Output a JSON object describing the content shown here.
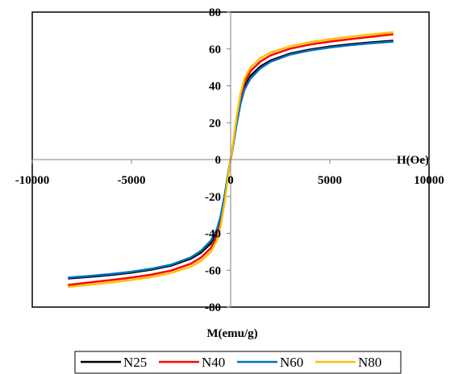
{
  "chart_data": {
    "type": "line",
    "xlabel": "H(Oe)",
    "ylabel": "M(emu/g)",
    "xlim": [
      -10000,
      10000
    ],
    "ylim": [
      -80,
      80
    ],
    "x_ticks": [
      -10000,
      -5000,
      0,
      5000,
      10000
    ],
    "y_ticks": [
      -80,
      -60,
      -40,
      -20,
      0,
      20,
      40,
      60,
      80
    ],
    "grid": false,
    "legend_position": "bottom",
    "x": [
      -8200,
      -7000,
      -6000,
      -5000,
      -4000,
      -3000,
      -2000,
      -1500,
      -1000,
      -700,
      -500,
      -300,
      -200,
      -100,
      0,
      100,
      200,
      300,
      500,
      700,
      1000,
      1500,
      2000,
      3000,
      4000,
      5000,
      6000,
      7000,
      8200
    ],
    "series": [
      {
        "name": "N25",
        "color": "#000000",
        "values": [
          -64.5,
          -63.5,
          -62.5,
          -61.3,
          -59.7,
          -57.5,
          -53.7,
          -50.5,
          -45.5,
          -39.5,
          -32,
          -20,
          -13,
          -6,
          0,
          6,
          13,
          20,
          32,
          39.5,
          45.5,
          50.5,
          53.7,
          57.5,
          59.7,
          61.3,
          62.5,
          63.5,
          64.5
        ]
      },
      {
        "name": "N40",
        "color": "#ff0000",
        "values": [
          -68,
          -66.5,
          -65.3,
          -64,
          -62.4,
          -60.2,
          -56.5,
          -53.2,
          -48,
          -42,
          -34,
          -21.5,
          -14,
          -6.5,
          0,
          6.5,
          14,
          21.5,
          34,
          42,
          48,
          53.2,
          56.5,
          60.2,
          62.4,
          64,
          65.3,
          66.5,
          68
        ]
      },
      {
        "name": "N60",
        "color": "#0070c0",
        "values": [
          -64,
          -63,
          -62,
          -60.8,
          -59.2,
          -57,
          -53,
          -49.5,
          -44,
          -38,
          -30.5,
          -19,
          -12.5,
          -6,
          0,
          6,
          12.5,
          19,
          30.5,
          38,
          44,
          49.5,
          53,
          57,
          59.2,
          60.8,
          62,
          63,
          64
        ]
      },
      {
        "name": "N80",
        "color": "#ffc000",
        "values": [
          -69,
          -67.8,
          -66.6,
          -65.3,
          -63.7,
          -61.5,
          -58,
          -55,
          -50,
          -44,
          -36,
          -23,
          -15,
          -7,
          0,
          7,
          15,
          23,
          36,
          44,
          50,
          55,
          58,
          61.5,
          63.7,
          65.3,
          66.6,
          67.8,
          69
        ]
      }
    ]
  }
}
